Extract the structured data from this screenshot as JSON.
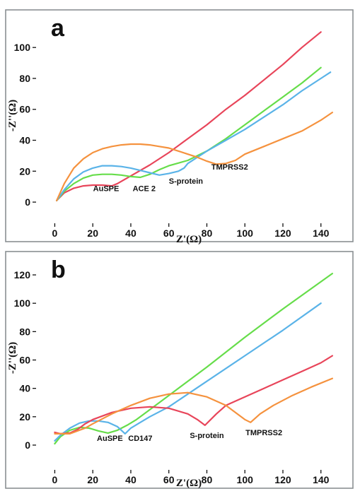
{
  "chart_data": [
    {
      "type": "line",
      "panel_label": "a",
      "xlabel": "Z'(Ω)",
      "ylabel": "-Z''(Ω)",
      "xlim": [
        -5,
        152
      ],
      "ylim": [
        -5,
        117
      ],
      "xticks": [
        0,
        20,
        40,
        60,
        80,
        100,
        120,
        140
      ],
      "yticks": [
        0,
        20,
        40,
        60,
        80,
        100
      ],
      "grid": false,
      "legend": "none",
      "annotations": [
        {
          "text": "AuSPE",
          "x": 27,
          "y": 7
        },
        {
          "text": "ACE 2",
          "x": 47,
          "y": 7
        },
        {
          "text": "S-protein",
          "x": 69,
          "y": 12
        },
        {
          "text": "TMPRSS2",
          "x": 92,
          "y": 21
        }
      ],
      "series": [
        {
          "color": "#e8455a",
          "x": [
            1,
            5,
            10,
            15,
            20,
            25,
            30,
            33,
            40,
            50,
            60,
            70,
            80,
            90,
            100,
            110,
            120,
            130,
            140
          ],
          "y": [
            1,
            6,
            9,
            10.5,
            11,
            11,
            10.5,
            12,
            17,
            24,
            32,
            41,
            50,
            60,
            69,
            79,
            89,
            100,
            110
          ]
        },
        {
          "color": "#66dd4a",
          "x": [
            1,
            5,
            10,
            15,
            20,
            25,
            30,
            35,
            40,
            45,
            50,
            55,
            60,
            70,
            80,
            90,
            100,
            110,
            120,
            130,
            140
          ],
          "y": [
            1,
            7,
            12,
            15.5,
            17.5,
            18,
            18,
            17.5,
            16.5,
            16,
            18,
            21,
            23.5,
            27,
            33,
            41,
            50,
            59,
            68,
            77,
            87
          ]
        },
        {
          "color": "#5ab3e8",
          "x": [
            1,
            5,
            10,
            15,
            20,
            25,
            30,
            35,
            40,
            45,
            50,
            55,
            60,
            65,
            68,
            70,
            80,
            90,
            100,
            110,
            120,
            130,
            140,
            145
          ],
          "y": [
            1,
            8,
            15,
            19.5,
            22,
            23.5,
            23.5,
            23,
            22,
            20.5,
            19,
            17.5,
            18.5,
            20,
            22,
            25,
            33,
            40,
            47,
            55,
            63,
            72,
            80,
            84
          ]
        },
        {
          "color": "#f5923e",
          "x": [
            1,
            5,
            10,
            15,
            20,
            25,
            30,
            35,
            40,
            45,
            50,
            55,
            60,
            65,
            70,
            75,
            80,
            85,
            90,
            95,
            100,
            110,
            120,
            130,
            140,
            146
          ],
          "y": [
            1,
            12,
            22,
            28,
            32,
            34.5,
            36,
            37,
            37.5,
            37.5,
            37,
            36,
            35,
            33,
            31,
            29,
            26.5,
            24.5,
            25,
            27,
            31,
            36,
            41,
            46,
            53,
            58
          ]
        }
      ]
    },
    {
      "type": "line",
      "panel_label": "b",
      "xlabel": "Z'(Ω)",
      "ylabel": "-Z''(Ω)",
      "xlim": [
        -5,
        152
      ],
      "ylim": [
        -5,
        128
      ],
      "xticks": [
        0,
        20,
        40,
        60,
        80,
        100,
        120,
        140
      ],
      "yticks": [
        0,
        20,
        40,
        60,
        80,
        100,
        120
      ],
      "grid": false,
      "legend": "none",
      "annotations": [
        {
          "text": "AuSPE",
          "x": 29,
          "y": 3
        },
        {
          "text": "CD147",
          "x": 45,
          "y": 3
        },
        {
          "text": "S-protein",
          "x": 80,
          "y": 5
        },
        {
          "text": "TMPRSS2",
          "x": 110,
          "y": 7
        }
      ],
      "series": [
        {
          "color": "#66dd4a",
          "x": [
            0,
            3,
            8,
            13,
            18,
            23,
            28,
            33,
            38,
            43,
            48,
            60,
            80,
            100,
            120,
            146
          ],
          "y": [
            1,
            6,
            10.5,
            12.5,
            12,
            10,
            8.5,
            10.5,
            14,
            18,
            23,
            35,
            55,
            76,
            96,
            121
          ]
        },
        {
          "color": "#5ab3e8",
          "x": [
            0,
            3,
            8,
            13,
            18,
            23,
            28,
            33,
            37,
            40,
            45,
            50,
            60,
            80,
            100,
            120,
            140
          ],
          "y": [
            3,
            7,
            12,
            15.5,
            17,
            17,
            16,
            13,
            8,
            12,
            16,
            20,
            27,
            45,
            63,
            81,
            100
          ]
        },
        {
          "color": "#e8455a",
          "x": [
            0,
            3,
            8,
            12,
            16,
            20,
            30,
            40,
            50,
            60,
            70,
            75,
            79,
            85,
            90,
            100,
            110,
            120,
            130,
            140,
            146
          ],
          "y": [
            9,
            8,
            8.5,
            11,
            15,
            18,
            23,
            26,
            27,
            26,
            22,
            18,
            14,
            22,
            28,
            34,
            40,
            46,
            52,
            58,
            63
          ]
        },
        {
          "color": "#f5923e",
          "x": [
            0,
            3,
            8,
            12,
            16,
            20,
            30,
            40,
            50,
            60,
            70,
            80,
            90,
            95,
            100,
            103,
            108,
            115,
            125,
            135,
            146
          ],
          "y": [
            8,
            8,
            8,
            10,
            12,
            15,
            22,
            28,
            33,
            36,
            37,
            34,
            28,
            23,
            18,
            16,
            22,
            28,
            35,
            41,
            47
          ]
        }
      ]
    }
  ]
}
